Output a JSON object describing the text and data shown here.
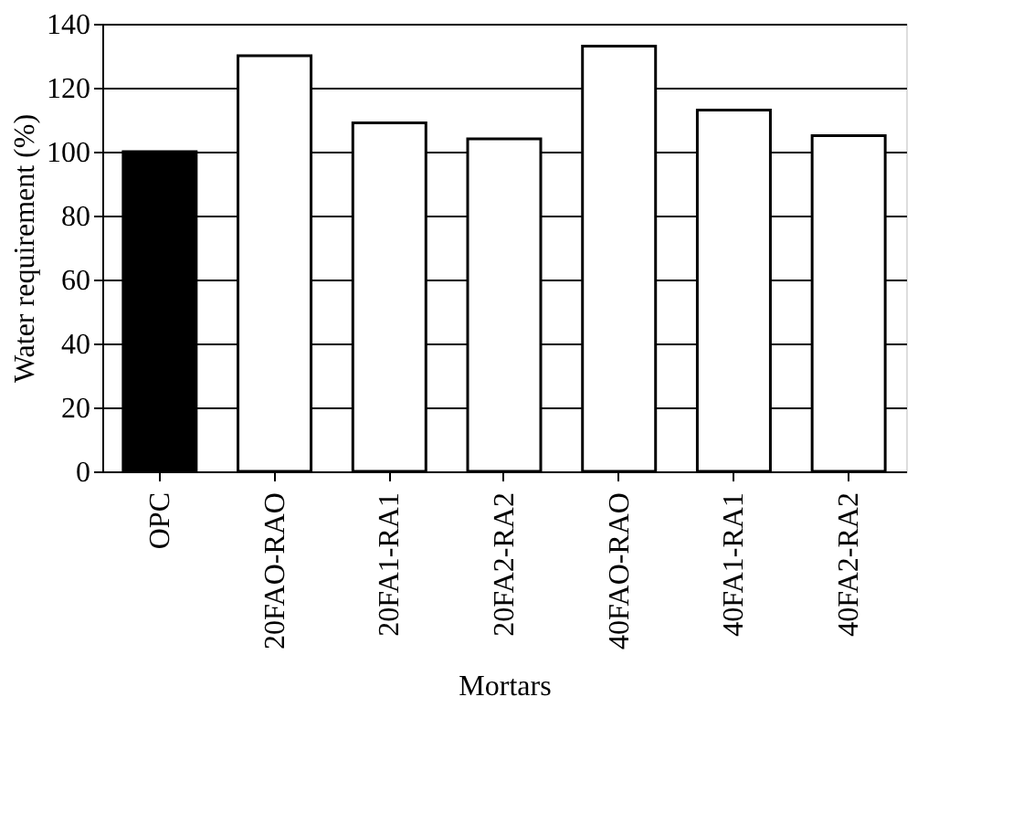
{
  "chart_data": {
    "type": "bar",
    "xlabel": "Mortars",
    "ylabel": "Water requirement (%)",
    "categories": [
      "OPC",
      "20FAO-RAO",
      "20FA1-RA1",
      "20FA2-RA2",
      "40FAO-RAO",
      "40FA1-RA1",
      "40FA2-RA2"
    ],
    "values": [
      100,
      130,
      109,
      104,
      133,
      113,
      105
    ],
    "colors": [
      "#000000",
      "#ffffff",
      "#ffffff",
      "#ffffff",
      "#ffffff",
      "#ffffff",
      "#ffffff"
    ],
    "ylim": [
      0,
      140
    ],
    "yticks": [
      0,
      20,
      40,
      60,
      80,
      100,
      120,
      140
    ],
    "grid": "y"
  }
}
